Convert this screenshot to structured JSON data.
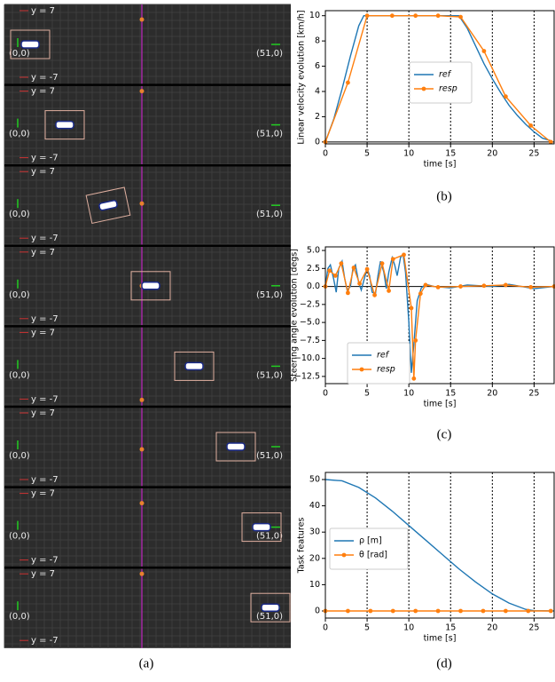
{
  "simulation": {
    "caption": "(a)",
    "frames": [
      {
        "upper": "y = 7",
        "lower": "y = -7",
        "start": "(0,0)",
        "goal": "(51,0)"
      },
      {
        "upper": "y = 7",
        "lower": "y = -7",
        "start": "(0,0)",
        "goal": "(51,0)"
      },
      {
        "upper": "y = 7",
        "lower": "y = -7",
        "start": "(0,0)",
        "goal": "(51,0)"
      },
      {
        "upper": "y = 7",
        "lower": "y = -7",
        "start": "(0,0)",
        "goal": "(51,0)"
      },
      {
        "upper": "y = 7",
        "lower": "y = -7",
        "start": "(0,0)",
        "goal": "(51,0)"
      },
      {
        "upper": "y = 7",
        "lower": "y = -7",
        "start": "(0,0)",
        "goal": "(51,0)"
      },
      {
        "upper": "y = 7",
        "lower": "y = -7",
        "start": "(0,0)",
        "goal": "(51,0)"
      },
      {
        "upper": "y = 7",
        "lower": "y = -7",
        "start": "(0,0)",
        "goal": "(51,0)"
      }
    ]
  },
  "chart_data": [
    {
      "type": "line",
      "caption": "(b)",
      "xlabel": "time [s]",
      "ylabel": "Linear velocity evolution [km/h]",
      "xlim": [
        0,
        27.4
      ],
      "ylim": [
        -0.15,
        10.4
      ],
      "xticks": [
        0,
        5,
        10,
        15,
        20,
        25
      ],
      "yticks": [
        0,
        2,
        4,
        6,
        8,
        10
      ],
      "vlines": [
        5,
        10,
        15,
        20,
        25
      ],
      "hline": 0,
      "legend": "center",
      "series": [
        {
          "name": "ref",
          "color": "#1f77b4",
          "marker": false,
          "x": [
            0,
            1,
            2,
            3,
            4,
            4.6,
            16,
            17,
            18,
            19,
            20,
            21,
            22,
            23,
            24,
            25,
            26,
            27
          ],
          "values": [
            0,
            1.8,
            4.2,
            6.8,
            9.2,
            10,
            10,
            9,
            7.6,
            6.2,
            5,
            3.9,
            2.9,
            2.1,
            1.4,
            0.8,
            0.3,
            0.1
          ]
        },
        {
          "name": "resp",
          "color": "#ff7f0e",
          "marker": true,
          "x": [
            0,
            2.7,
            5,
            8,
            10.8,
            13.5,
            16.2,
            19,
            21.6,
            24.6,
            27
          ],
          "values": [
            0,
            4.7,
            10,
            10,
            10,
            10,
            9.9,
            7.2,
            3.6,
            1.3,
            0
          ]
        }
      ]
    },
    {
      "type": "line",
      "caption": "(c)",
      "xlabel": "time [s]",
      "ylabel": "Steering angle evolution [degs]",
      "xlim": [
        0,
        27.4
      ],
      "ylim": [
        -13.5,
        5.5
      ],
      "xticks": [
        0,
        5,
        10,
        15,
        20,
        25
      ],
      "yticks": [
        {
          "value": 5,
          "label": "5.0"
        },
        {
          "value": 2.5,
          "label": "2.5"
        },
        {
          "value": 0,
          "label": "0.0"
        },
        {
          "value": -2.5,
          "label": "−2.5"
        },
        {
          "value": -5,
          "label": "−5.0"
        },
        {
          "value": -7.5,
          "label": "−7.5"
        },
        {
          "value": -10,
          "label": "−10.0"
        },
        {
          "value": -12.5,
          "label": "−12.5"
        }
      ],
      "vlines": [
        5,
        10,
        15,
        20,
        25
      ],
      "hline": 0,
      "legend": "lower left",
      "series": [
        {
          "name": "ref",
          "color": "#1f77b4",
          "marker": false,
          "x": [
            0,
            0.3,
            0.6,
            1,
            1.3,
            1.6,
            2,
            2.3,
            2.6,
            3,
            3.3,
            3.6,
            4,
            4.3,
            4.6,
            5,
            5.3,
            5.6,
            6,
            6.3,
            6.6,
            7,
            7.3,
            7.6,
            8,
            8.3,
            8.6,
            9,
            9.3,
            9.6,
            10,
            10.3,
            10.6,
            11,
            11.5,
            12,
            13,
            15,
            17,
            20,
            22,
            25,
            27.4
          ],
          "values": [
            0,
            2.5,
            3,
            1,
            -0.8,
            2.5,
            3.5,
            1.2,
            -0.5,
            0,
            2.5,
            3,
            0.5,
            -0.5,
            0.8,
            2.5,
            1.5,
            -0.8,
            -1,
            1.5,
            3.5,
            2,
            -0.3,
            2,
            4,
            3,
            1.5,
            4,
            4.5,
            2,
            -5,
            -12,
            -8,
            -2,
            -0.2,
            0.3,
            0,
            -0.2,
            0.2,
            0,
            0.3,
            -0.3,
            0
          ]
        },
        {
          "name": "resp",
          "color": "#ff7f0e",
          "marker": true,
          "x": [
            0,
            0.5,
            1.2,
            1.9,
            2.7,
            3.4,
            4.1,
            5,
            5.9,
            6.8,
            7.6,
            8.1,
            9.4,
            10.3,
            10.6,
            10.8,
            11.4,
            12,
            13.5,
            16.2,
            19,
            21.6,
            24.6,
            27.4
          ],
          "values": [
            0,
            2.2,
            1.5,
            3.2,
            -0.9,
            2.6,
            0.4,
            2.4,
            -1.2,
            3.2,
            -0.6,
            3.8,
            4.4,
            -3,
            -12.8,
            -7.5,
            -1,
            0.2,
            -0.1,
            0,
            0.1,
            0.2,
            -0.1,
            0
          ]
        }
      ]
    },
    {
      "type": "line",
      "caption": "(d)",
      "xlabel": "time [s]",
      "ylabel": "Task features",
      "xlim": [
        0,
        27.4
      ],
      "ylim": [
        -2.7,
        52.7
      ],
      "xticks": [
        0,
        5,
        10,
        15,
        20,
        25
      ],
      "yticks": [
        0,
        10,
        20,
        30,
        40,
        50
      ],
      "vlines": [
        5,
        10,
        15,
        20,
        25
      ],
      "hline": 0,
      "legend": "center left",
      "series": [
        {
          "name": "ρ [m]",
          "color": "#1f77b4",
          "marker": false,
          "x": [
            0,
            2,
            4,
            6,
            8,
            10,
            12,
            14,
            16,
            18,
            20,
            22,
            24,
            25,
            27.4
          ],
          "values": [
            50,
            49.5,
            47,
            43,
            38,
            32.5,
            27,
            21.5,
            16,
            11,
            6.5,
            3,
            0.6,
            0.1,
            0
          ]
        },
        {
          "name": "θ [rad]",
          "color": "#ff7f0e",
          "marker": true,
          "x": [
            0,
            2.7,
            5.4,
            8.1,
            10.8,
            13.5,
            16.2,
            18.9,
            21.6,
            24.3,
            27
          ],
          "values": [
            0,
            0,
            0,
            0,
            0,
            0,
            0,
            0,
            0,
            0,
            0
          ]
        }
      ]
    }
  ]
}
